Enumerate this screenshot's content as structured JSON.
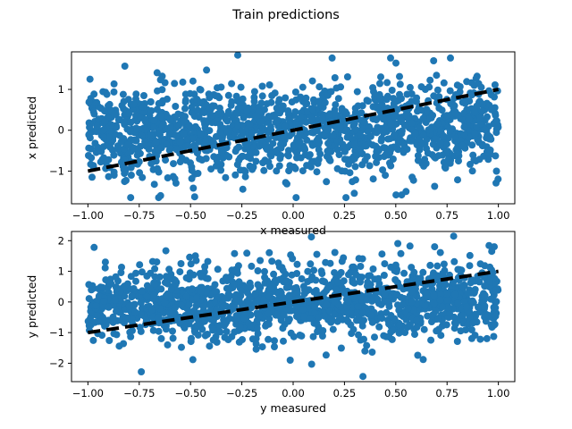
{
  "figure": {
    "title": "Train predictions"
  },
  "colors": {
    "points": "#1f77b4",
    "identity_line": "#000000",
    "axes": "#000000"
  },
  "chart_data": [
    {
      "type": "scatter",
      "title": "",
      "xlabel": "x measured",
      "ylabel": "x predicted",
      "xlim": [
        -1.08,
        1.08
      ],
      "ylim": [
        -1.8,
        1.92
      ],
      "xticks": [
        -1.0,
        -0.75,
        -0.5,
        -0.25,
        0.0,
        0.25,
        0.5,
        0.75,
        1.0
      ],
      "xtick_labels": [
        "−1.00",
        "−0.75",
        "−0.50",
        "−0.25",
        "0.00",
        "0.25",
        "0.50",
        "0.75",
        "1.00"
      ],
      "yticks": [
        -1,
        0,
        1
      ],
      "ytick_labels": [
        "−1",
        "0",
        "1"
      ],
      "reference_line": {
        "x": [
          -1,
          1
        ],
        "y": [
          -1,
          1
        ],
        "style": "dashed"
      },
      "points": {
        "n": 1500,
        "x_range": [
          -1,
          1
        ],
        "y_mean_slope": 0.1,
        "y_std": 0.55,
        "notable": [
          [
            -0.27,
            1.84
          ],
          [
            0.19,
            1.77
          ],
          [
            -0.82,
            1.57
          ],
          [
            -0.48,
            -1.63
          ],
          [
            0.55,
            -1.5
          ],
          [
            -0.98,
            -1.15
          ]
        ]
      },
      "grid": false
    },
    {
      "type": "scatter",
      "title": "",
      "xlabel": "y measured",
      "ylabel": "y predicted",
      "xlim": [
        -1.08,
        1.08
      ],
      "ylim": [
        -2.6,
        2.3
      ],
      "xticks": [
        -1.0,
        -0.75,
        -0.5,
        -0.25,
        0.0,
        0.25,
        0.5,
        0.75,
        1.0
      ],
      "xtick_labels": [
        "−1.00",
        "−0.75",
        "−0.50",
        "−0.25",
        "0.00",
        "0.25",
        "0.50",
        "0.75",
        "1.00"
      ],
      "yticks": [
        -2,
        -1,
        0,
        1,
        2
      ],
      "ytick_labels": [
        "−2",
        "−1",
        "0",
        "1",
        "2"
      ],
      "reference_line": {
        "x": [
          -1,
          1
        ],
        "y": [
          -1,
          1
        ],
        "style": "dashed"
      },
      "points": {
        "n": 1500,
        "x_range": [
          -1,
          1
        ],
        "y_mean_slope": 0.1,
        "y_std": 0.6,
        "notable": [
          [
            0.34,
            -2.43
          ],
          [
            -0.74,
            -2.28
          ],
          [
            0.09,
            -2.03
          ],
          [
            -0.97,
            1.78
          ],
          [
            0.98,
            1.8
          ],
          [
            -0.62,
            1.67
          ]
        ]
      },
      "grid": false
    }
  ]
}
